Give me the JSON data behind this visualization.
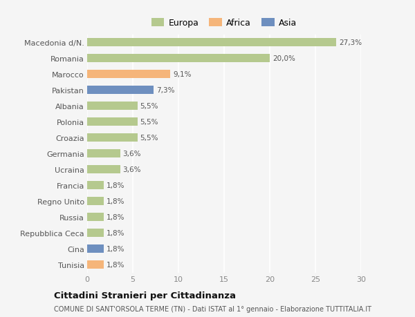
{
  "categories": [
    "Macedonia d/N.",
    "Romania",
    "Marocco",
    "Pakistan",
    "Albania",
    "Polonia",
    "Croazia",
    "Germania",
    "Ucraina",
    "Francia",
    "Regno Unito",
    "Russia",
    "Repubblica Ceca",
    "Cina",
    "Tunisia"
  ],
  "values": [
    27.3,
    20.0,
    9.1,
    7.3,
    5.5,
    5.5,
    5.5,
    3.6,
    3.6,
    1.8,
    1.8,
    1.8,
    1.8,
    1.8,
    1.8
  ],
  "labels": [
    "27,3%",
    "20,0%",
    "9,1%",
    "7,3%",
    "5,5%",
    "5,5%",
    "5,5%",
    "3,6%",
    "3,6%",
    "1,8%",
    "1,8%",
    "1,8%",
    "1,8%",
    "1,8%",
    "1,8%"
  ],
  "colors": [
    "#b5c98e",
    "#b5c98e",
    "#f5b57a",
    "#6e8fbf",
    "#b5c98e",
    "#b5c98e",
    "#b5c98e",
    "#b5c98e",
    "#b5c98e",
    "#b5c98e",
    "#b5c98e",
    "#b5c98e",
    "#b5c98e",
    "#6e8fbf",
    "#f5b57a"
  ],
  "legend": [
    {
      "label": "Europa",
      "color": "#b5c98e"
    },
    {
      "label": "Africa",
      "color": "#f5b57a"
    },
    {
      "label": "Asia",
      "color": "#6e8fbf"
    }
  ],
  "xlim": [
    0,
    30
  ],
  "xticks": [
    0,
    5,
    10,
    15,
    20,
    25,
    30
  ],
  "title": "Cittadini Stranieri per Cittadinanza",
  "subtitle": "COMUNE DI SANT'ORSOLA TERME (TN) - Dati ISTAT al 1° gennaio - Elaborazione TUTTITALIA.IT",
  "background_color": "#f5f5f5",
  "plot_bg_color": "#f5f5f5",
  "grid_color": "#ffffff",
  "bar_height": 0.55
}
